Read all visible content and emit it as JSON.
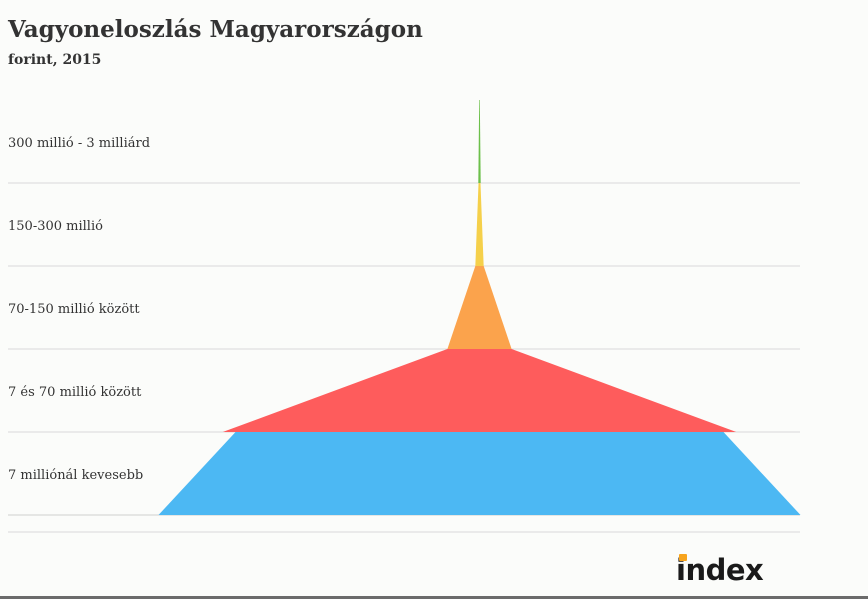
{
  "chart_data": {
    "type": "pyramid",
    "title": "Vagyoneloszlás Magyarországon",
    "subtitle": "forint, 2015",
    "categories": [
      "300 millió - 3 milliárd",
      "150-300 millió",
      "70-150 millió között",
      "7 és 70 millió között",
      "7 milliónál kevesebb"
    ],
    "relative_values": [
      0.3,
      1.3,
      10,
      80,
      100
    ],
    "colors": [
      "#6cc04a",
      "#f5d04a",
      "#fba34c",
      "#fe5c5c",
      "#4cb8f3"
    ],
    "grid": true
  },
  "branding": {
    "logo_text": "index",
    "logo_accent": "#f7a41d"
  }
}
